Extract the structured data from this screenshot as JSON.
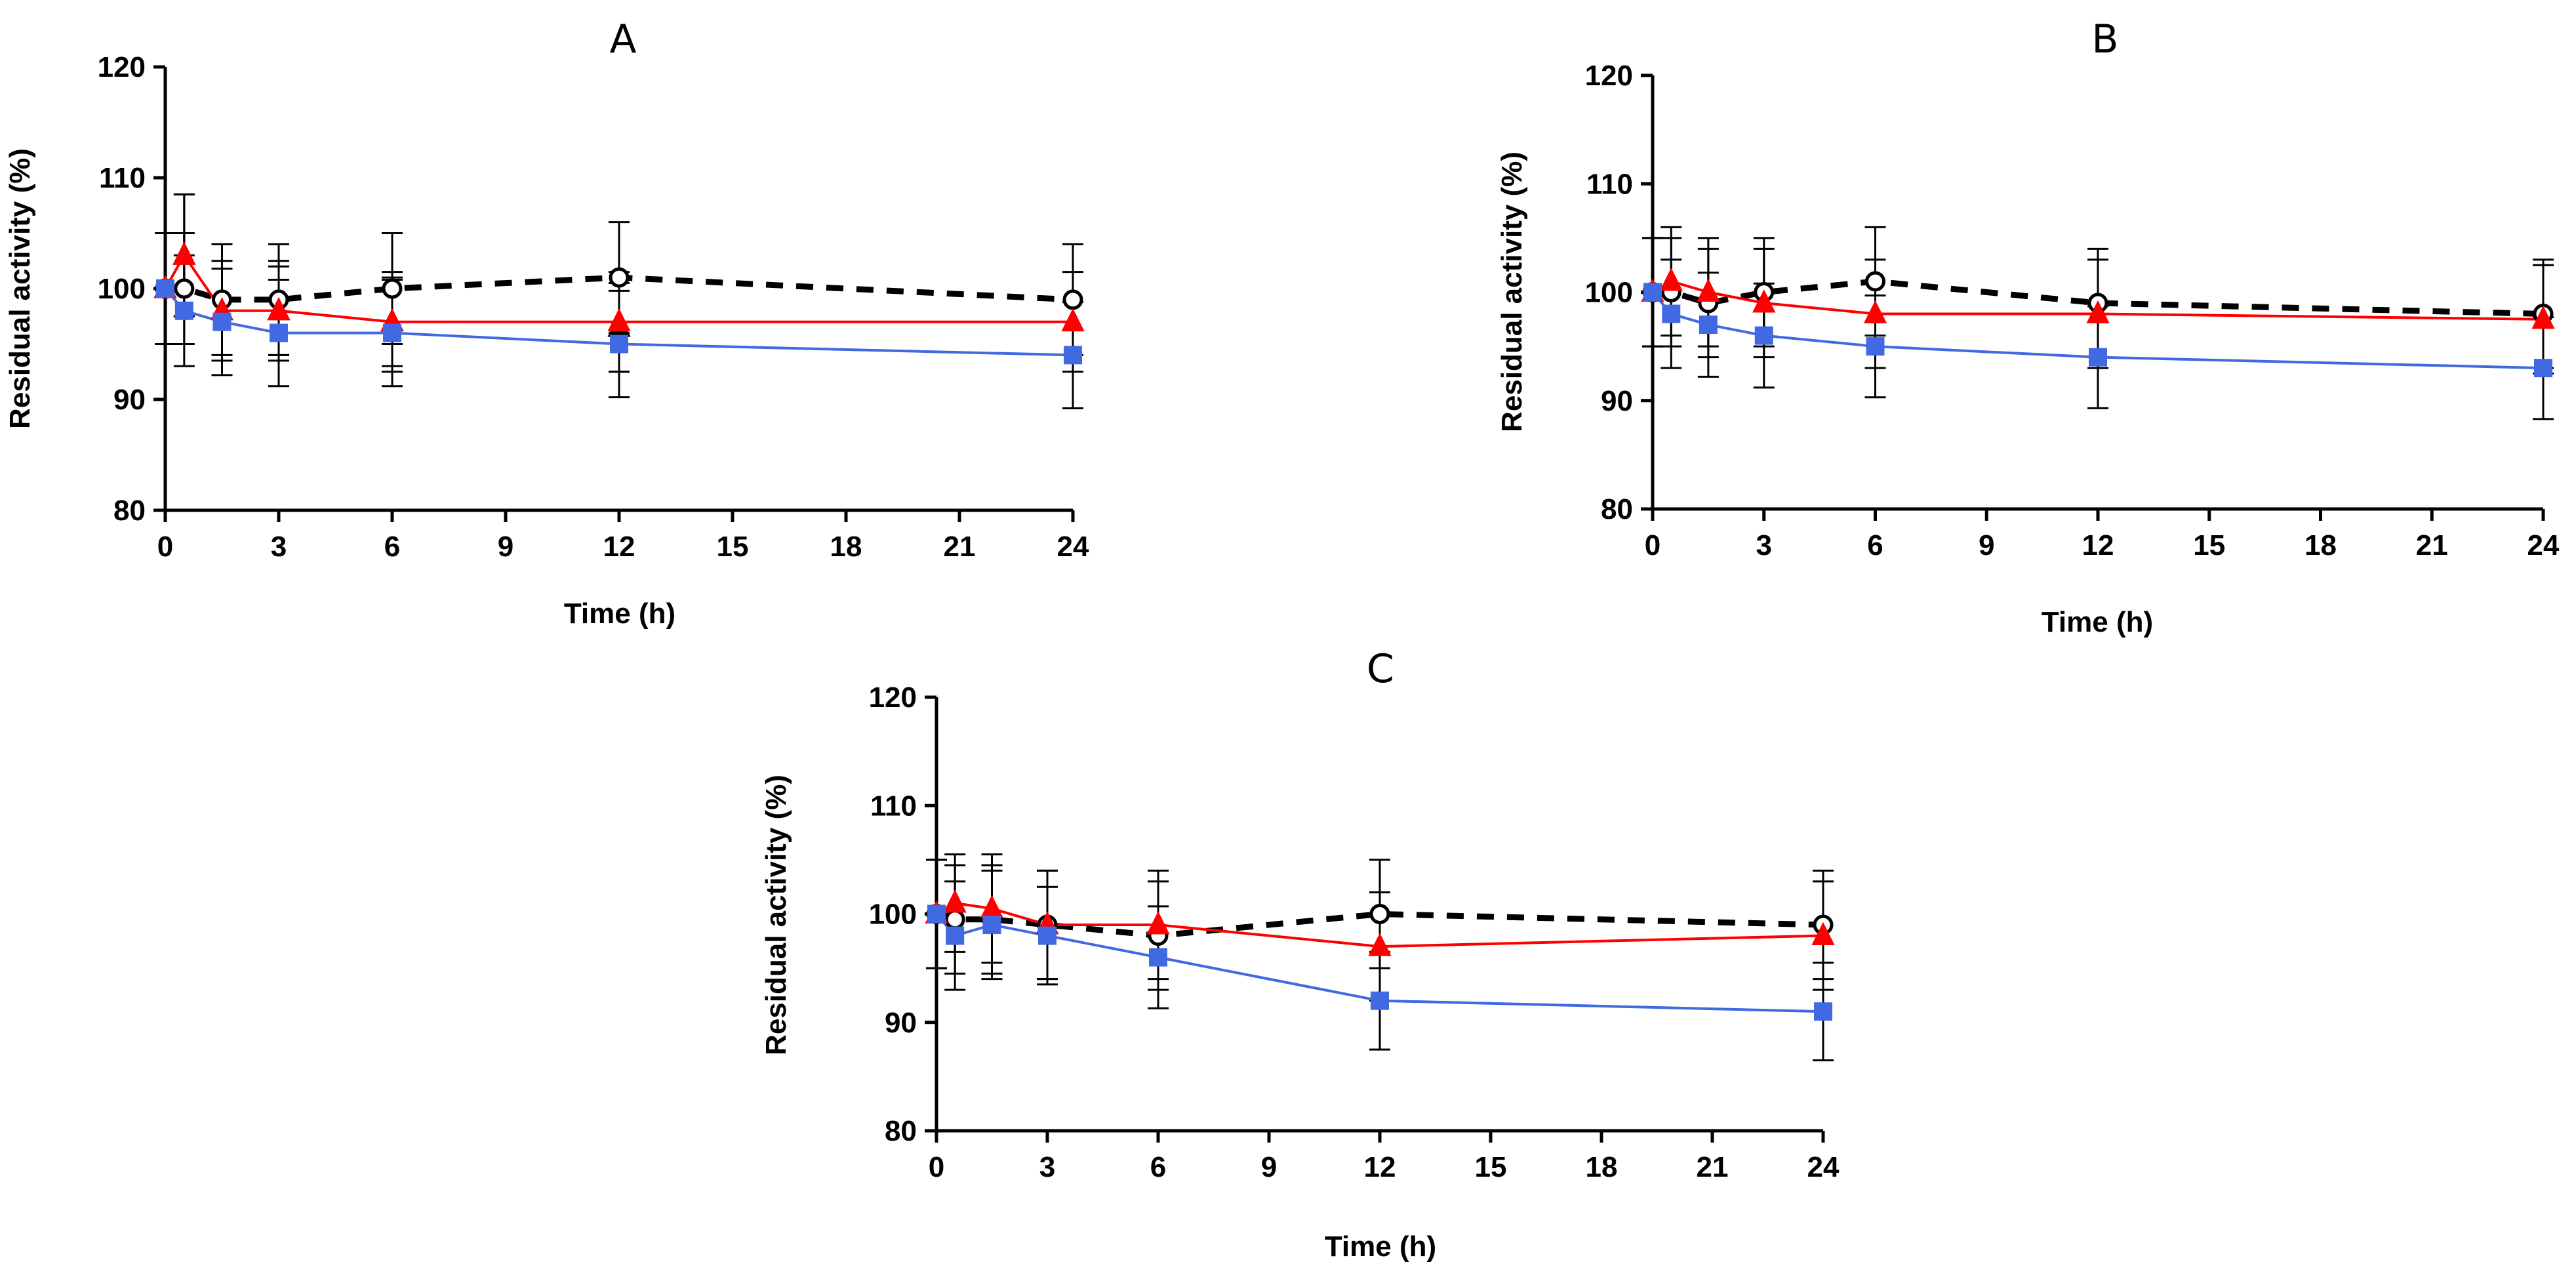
{
  "figure": {
    "xlabel": "Time (h)",
    "ylabel": "Residual activity (%)",
    "x_ticks": [
      0,
      3,
      6,
      9,
      12,
      15,
      18,
      21,
      24
    ],
    "y_ticks": [
      80,
      90,
      100,
      110,
      120
    ]
  },
  "chart_data": [
    {
      "type": "line",
      "title": "A",
      "xlabel": "Time (h)",
      "ylabel": "Residual activity (%)",
      "xlim": [
        0,
        24
      ],
      "ylim": [
        80,
        120
      ],
      "series": [
        {
          "name": "open-circle-dashed",
          "marker": "circle-open",
          "color": "#000000",
          "dashed": true,
          "x": [
            0,
            0.5,
            1.5,
            3,
            6,
            12,
            24
          ],
          "y": [
            100,
            100,
            99,
            99,
            100,
            101,
            99
          ],
          "err": [
            5,
            5,
            5,
            5,
            5,
            5,
            5
          ]
        },
        {
          "name": "black-triangle",
          "marker": "triangle",
          "color": "#000000",
          "dashed": false,
          "noline": true,
          "x": [
            0.5,
            3,
            6,
            12
          ],
          "y": [
            103,
            98,
            97,
            96.5
          ],
          "err": [
            5.5,
            4,
            4,
            4
          ]
        },
        {
          "name": "red-triangle",
          "marker": "triangle",
          "color": "#ff0000",
          "dashed": false,
          "x": [
            0,
            0.5,
            1.5,
            3,
            6,
            12,
            24
          ],
          "y": [
            100,
            103,
            98,
            98,
            97,
            97,
            97
          ],
          "err": [
            5,
            5.5,
            4.5,
            4.5,
            4.5,
            4.5,
            4.5
          ]
        },
        {
          "name": "blue-square",
          "marker": "square",
          "color": "#4169e1",
          "dashed": false,
          "x": [
            0,
            0.5,
            1.5,
            3,
            6,
            12,
            24
          ],
          "y": [
            100,
            98,
            97,
            96,
            96,
            95,
            94
          ],
          "err": [
            5,
            5,
            4.8,
            4.8,
            4.8,
            4.8,
            4.8
          ]
        }
      ]
    },
    {
      "type": "line",
      "title": "B",
      "xlabel": "Time (h)",
      "ylabel": "Residual activity (%)",
      "xlim": [
        0,
        24
      ],
      "ylim": [
        80,
        120
      ],
      "series": [
        {
          "name": "open-circle-dashed",
          "marker": "circle-open",
          "color": "#000000",
          "dashed": true,
          "x": [
            0,
            0.5,
            1.5,
            3,
            6,
            12,
            24
          ],
          "y": [
            100,
            100,
            99,
            100,
            101,
            99,
            98
          ],
          "err": [
            5,
            5,
            5,
            5,
            5,
            5,
            5
          ]
        },
        {
          "name": "red-triangle",
          "marker": "triangle",
          "color": "#ff0000",
          "dashed": false,
          "x": [
            0,
            0.5,
            1.5,
            3,
            6,
            12,
            24
          ],
          "y": [
            100,
            101,
            100,
            99,
            98,
            98,
            97.5
          ],
          "err": [
            5,
            5,
            5,
            5,
            5,
            5,
            5
          ]
        },
        {
          "name": "blue-square",
          "marker": "square",
          "color": "#4169e1",
          "dashed": false,
          "x": [
            0,
            0.5,
            1.5,
            3,
            6,
            12,
            24
          ],
          "y": [
            100,
            98,
            97,
            96,
            95,
            94,
            93
          ],
          "err": [
            5,
            5,
            4.8,
            4.8,
            4.7,
            4.7,
            4.7
          ]
        }
      ]
    },
    {
      "type": "line",
      "title": "C",
      "xlabel": "Time (h)",
      "ylabel": "Residual activity (%)",
      "xlim": [
        0,
        24
      ],
      "ylim": [
        80,
        120
      ],
      "series": [
        {
          "name": "open-circle-dashed",
          "marker": "circle-open",
          "color": "#000000",
          "dashed": true,
          "x": [
            0,
            0.5,
            1.5,
            3,
            6,
            12,
            24
          ],
          "y": [
            100,
            99.5,
            99.5,
            99,
            98,
            100,
            99
          ],
          "err": [
            5,
            5,
            5,
            5,
            5,
            5,
            5
          ]
        },
        {
          "name": "red-triangle",
          "marker": "triangle",
          "color": "#ff0000",
          "dashed": false,
          "x": [
            0,
            0.5,
            1.5,
            3,
            6,
            12,
            24
          ],
          "y": [
            100,
            101,
            100.5,
            99,
            99,
            97,
            98
          ],
          "err": [
            5,
            4.5,
            5,
            5,
            5,
            5,
            5
          ]
        },
        {
          "name": "blue-square",
          "marker": "square",
          "color": "#4169e1",
          "dashed": false,
          "x": [
            0,
            0.5,
            1.5,
            3,
            6,
            12,
            24
          ],
          "y": [
            100,
            98,
            99,
            98,
            96,
            92,
            91
          ],
          "err": [
            5,
            5,
            5,
            4.5,
            4.7,
            4.5,
            4.5
          ]
        }
      ]
    }
  ]
}
